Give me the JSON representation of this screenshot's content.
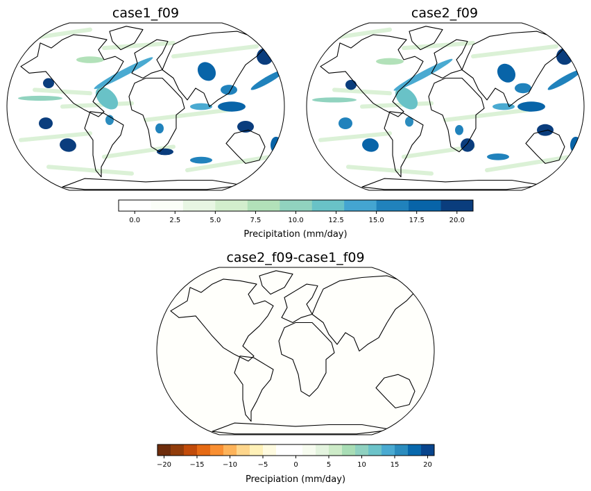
{
  "panels": [
    {
      "title": "case1_f09",
      "field": "precip"
    },
    {
      "title": "case2_f09",
      "field": "precip"
    },
    {
      "title": "case2_f09-case1_f09",
      "field": "diff"
    }
  ],
  "colorbars": [
    {
      "label": "Precipitation (mm/day)",
      "ticks": [
        "0.0",
        "2.5",
        "5.0",
        "7.5",
        "10.0",
        "12.5",
        "15.0",
        "17.5",
        "20.0"
      ],
      "tick_values": [
        0,
        2.5,
        5,
        7.5,
        10,
        12.5,
        15,
        17.5,
        20
      ],
      "range": [
        -1,
        21
      ],
      "colors": [
        "#ffffff",
        "#fbfef8",
        "#e8f6e3",
        "#d3eecd",
        "#b2e1b9",
        "#91d3bf",
        "#69c2c7",
        "#44a5d1",
        "#2082bc",
        "#0864a8",
        "#0a3d7d"
      ]
    },
    {
      "label": "Precipiation (mm/day)",
      "ticks": [
        "−20",
        "−15",
        "−10",
        "−5",
        "0",
        "5",
        "10",
        "15",
        "20"
      ],
      "tick_values": [
        -20,
        -15,
        -10,
        -5,
        0,
        5,
        10,
        15,
        20
      ],
      "range": [
        -21,
        21
      ],
      "colors": [
        "#6e2d0c",
        "#913c0b",
        "#c14b0a",
        "#e56a14",
        "#f98f32",
        "#fdb35a",
        "#fed68c",
        "#fff1b8",
        "#fffbe0",
        "#ffffff",
        "#ffffff",
        "#f7fcf0",
        "#e4f4df",
        "#cdebc8",
        "#a8ddb5",
        "#8fd1c0",
        "#6cc3c9",
        "#4aaad1",
        "#2b8cbe",
        "#0868ac",
        "#08448c"
      ]
    }
  ]
}
